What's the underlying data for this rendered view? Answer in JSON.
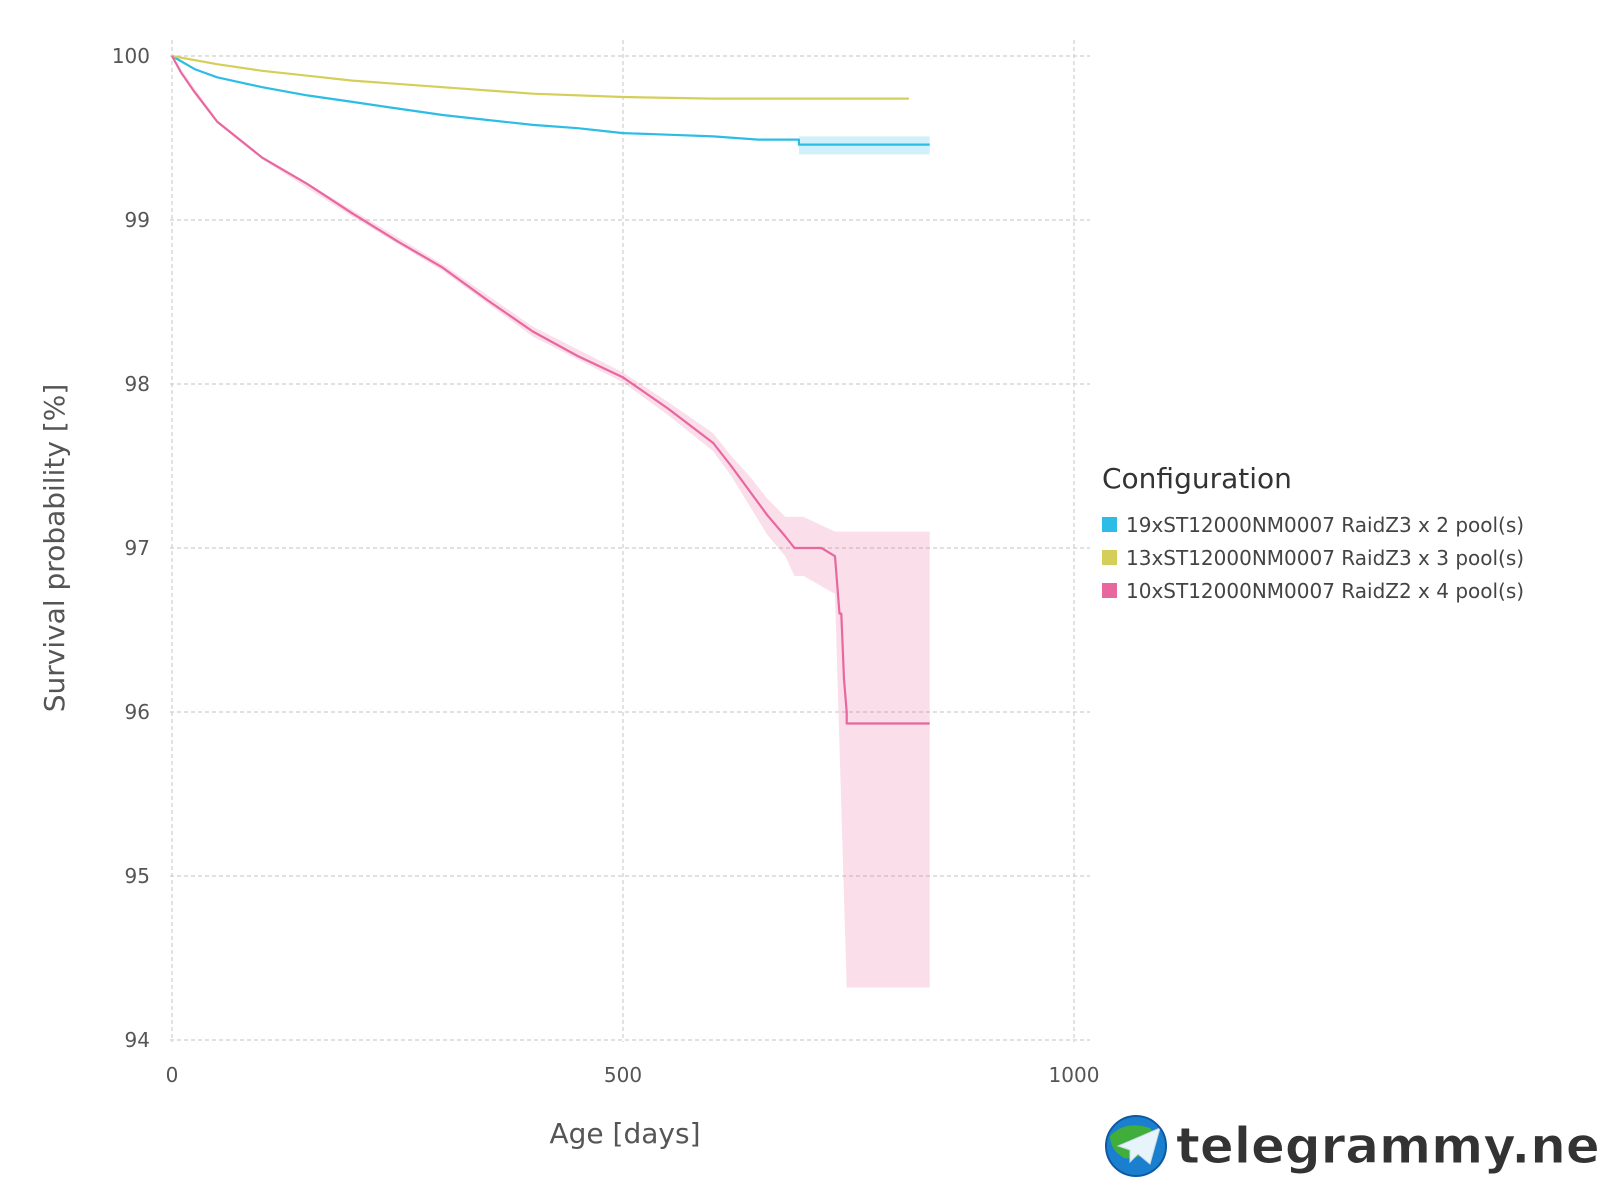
{
  "chart_data": {
    "type": "line",
    "xlabel": "Age [days]",
    "ylabel": "Survival probability [%]",
    "xlim": [
      0,
      1000
    ],
    "ylim": [
      94,
      100
    ],
    "x_ticks": [
      0,
      500,
      1000
    ],
    "y_ticks": [
      94,
      95,
      96,
      97,
      98,
      99,
      100
    ],
    "grid": true,
    "legend_title": "Configuration",
    "legend_position": "right",
    "series": [
      {
        "name": "19xST12000NM0007 RaidZ3 x 2 pool(s)",
        "color": "#2bbde6",
        "x": [
          0,
          25,
          50,
          100,
          150,
          200,
          250,
          300,
          350,
          400,
          450,
          500,
          550,
          600,
          650,
          695,
          695,
          840
        ],
        "y": [
          100,
          99.92,
          99.87,
          99.81,
          99.76,
          99.72,
          99.68,
          99.64,
          99.61,
          99.58,
          99.56,
          99.53,
          99.52,
          99.51,
          99.49,
          99.49,
          99.46,
          99.46
        ],
        "ci": {
          "x_start": 695,
          "x_end": 840,
          "lower": 99.4,
          "upper": 99.51
        }
      },
      {
        "name": "13xST12000NM0007 RaidZ3 x 3 pool(s)",
        "color": "#d4cf5a",
        "x": [
          0,
          50,
          100,
          150,
          200,
          300,
          400,
          500,
          600,
          700,
          817
        ],
        "y": [
          100,
          99.95,
          99.91,
          99.88,
          99.85,
          99.81,
          99.77,
          99.75,
          99.74,
          99.74,
          99.74
        ]
      },
      {
        "name": "10xST12000NM0007 RaidZ2 x 4 pool(s)",
        "color": "#e8679f",
        "x": [
          0,
          10,
          25,
          50,
          100,
          150,
          200,
          250,
          300,
          350,
          400,
          450,
          500,
          550,
          600,
          620,
          640,
          660,
          680,
          690,
          700,
          720,
          735,
          735,
          740,
          742,
          745,
          748,
          748,
          840
        ],
        "y": [
          100,
          99.9,
          99.78,
          99.6,
          99.38,
          99.22,
          99.04,
          98.87,
          98.71,
          98.51,
          98.32,
          98.17,
          98.04,
          97.85,
          97.64,
          97.5,
          97.35,
          97.2,
          97.07,
          97.0,
          97.0,
          97.0,
          96.95,
          96.95,
          96.6,
          96.6,
          96.2,
          96.0,
          95.93,
          95.93
        ],
        "ci": {
          "x": [
            0,
            50,
            100,
            200,
            300,
            400,
            500,
            550,
            600,
            620,
            640,
            660,
            680,
            690,
            700,
            735,
            748,
            840
          ],
          "lower": [
            100,
            99.59,
            99.37,
            99.02,
            98.69,
            98.29,
            98.01,
            97.81,
            97.59,
            97.44,
            97.26,
            97.08,
            96.95,
            96.83,
            96.83,
            96.72,
            94.32,
            94.32
          ],
          "upper": [
            100,
            99.61,
            99.39,
            99.06,
            98.73,
            98.35,
            98.07,
            97.89,
            97.7,
            97.56,
            97.44,
            97.3,
            97.19,
            97.19,
            97.19,
            97.1,
            97.1,
            97.1
          ]
        }
      }
    ]
  },
  "watermark": {
    "text": "telegrammy.net",
    "icon": "telegram-globe-logo"
  }
}
